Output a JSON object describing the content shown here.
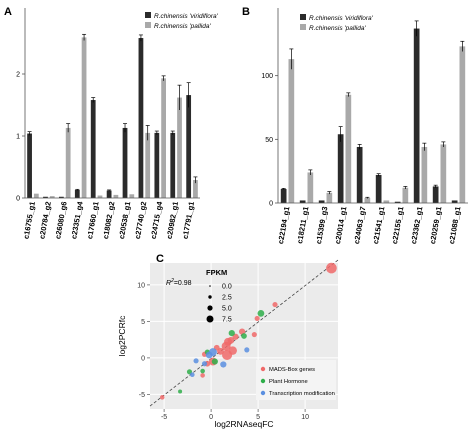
{
  "panels": {
    "a": {
      "letter": "A"
    },
    "b": {
      "letter": "B"
    },
    "c": {
      "letter": "C"
    }
  },
  "legend_ab": {
    "dark": "R.chinensis 'viridiflora'",
    "light": "R.chinensis 'pallida'"
  },
  "colors": {
    "dark_bar": "#2b2b2b",
    "light_bar": "#a9a9a9",
    "mads": "#f06a6a",
    "hormone": "#2fae4a",
    "transcription": "#5a8fe0",
    "scatter_bg": "#ebebeb"
  },
  "chart_data": [
    {
      "type": "bar",
      "panel": "A",
      "categories": [
        "c16755_g1",
        "c20784_g2",
        "c26080_g6",
        "c23351_g4",
        "c17660_g1",
        "c18082_g2",
        "c20538_g1",
        "c27740_g2",
        "c24715_g4",
        "c20982_g1",
        "c17791_g1"
      ],
      "series": [
        {
          "name": "R.chinensis 'viridiflora'",
          "values": [
            1.04,
            0.02,
            0.02,
            0.13,
            1.58,
            0.12,
            1.13,
            2.58,
            1.05,
            1.05,
            1.66
          ]
        },
        {
          "name": "R.chinensis 'pallida'",
          "values": [
            0.07,
            0.03,
            1.13,
            2.59,
            0.04,
            0.05,
            0.06,
            1.05,
            1.93,
            1.62,
            0.29
          ]
        }
      ],
      "errors": [
        [
          0.03,
          0.0,
          0.0,
          0.01,
          0.04,
          0.01,
          0.07,
          0.05,
          0.03,
          0.03,
          0.2
        ],
        [
          0.0,
          0.0,
          0.07,
          0.05,
          0.0,
          0.0,
          0.0,
          0.12,
          0.04,
          0.2,
          0.05
        ]
      ],
      "yticks": [
        0,
        1,
        2
      ],
      "ylim": [
        0,
        3.0
      ],
      "xlabel": "",
      "ylabel": ""
    },
    {
      "type": "bar",
      "panel": "B",
      "categories": [
        "c22194_g1",
        "c18211_g1",
        "c15399_g3",
        "c20014_g1",
        "c24063_g7",
        "c21541_g1",
        "c22155_g1",
        "c23362_g1",
        "c20259_g1",
        "c21088_g1"
      ],
      "series": [
        {
          "name": "R.chinensis 'viridiflora'",
          "values": [
            11,
            2,
            2,
            54,
            44,
            22,
            1,
            137,
            13,
            2
          ]
        },
        {
          "name": "R.chinensis 'pallida'",
          "values": [
            113,
            24,
            8,
            85,
            4,
            2,
            12,
            44,
            46,
            123
          ]
        }
      ],
      "errors": [
        [
          0.5,
          0,
          0,
          6,
          2,
          1,
          0,
          6,
          1,
          0
        ],
        [
          8,
          2,
          1,
          1.5,
          0.5,
          0,
          1,
          3,
          2,
          4
        ]
      ],
      "yticks": [
        0,
        50,
        100
      ],
      "ylim": [
        0,
        150
      ],
      "xlabel": "",
      "ylabel": ""
    },
    {
      "type": "scatter",
      "panel": "C",
      "xlabel": "log2RNAseqFC",
      "ylabel": "log2PCRfc",
      "r2_label": "R",
      "r2_sup": "2",
      "r2_value": "=0.98",
      "size_legend_title": "FPKM",
      "size_levels": [
        "0.0",
        "2.5",
        "5.0",
        "7.5"
      ],
      "xticks": [
        -5,
        0,
        5,
        10
      ],
      "yticks": [
        -5,
        0,
        5,
        10
      ],
      "xlim": [
        -6.5,
        13.5
      ],
      "ylim": [
        -7,
        13
      ],
      "series": [
        {
          "name": "MADS-Box genes",
          "points": [
            [
              12.8,
              12.3,
              7.5
            ],
            [
              6.8,
              7.3,
              2.5
            ],
            [
              4.9,
              5.4,
              2.5
            ],
            [
              3.3,
              3.6,
              3.5
            ],
            [
              2.6,
              2.9,
              3.5
            ],
            [
              2.1,
              2.4,
              4.0
            ],
            [
              1.8,
              2.2,
              5.0
            ],
            [
              1.6,
              1.6,
              6.0
            ],
            [
              1.7,
              0.4,
              7.0
            ],
            [
              1.0,
              0.9,
              4.0
            ],
            [
              0.6,
              1.4,
              3.0
            ],
            [
              2.3,
              1.0,
              5.5
            ],
            [
              -0.7,
              0.5,
              2.5
            ],
            [
              -0.4,
              -0.8,
              3.0
            ],
            [
              -0.9,
              -2.4,
              2.0
            ],
            [
              0.2,
              -0.5,
              5.0
            ],
            [
              -5.2,
              -5.4,
              2.0
            ],
            [
              4.6,
              3.2,
              2.5
            ]
          ]
        },
        {
          "name": "Plant Hormone",
          "points": [
            [
              5.3,
              6.1,
              4.0
            ],
            [
              2.2,
              3.4,
              3.5
            ],
            [
              3.5,
              3.0,
              3.0
            ],
            [
              -0.4,
              0.8,
              2.5
            ],
            [
              0.4,
              -0.5,
              3.5
            ],
            [
              -2.3,
              -1.9,
              2.5
            ],
            [
              -0.9,
              -1.8,
              2.0
            ],
            [
              -3.3,
              -4.6,
              1.5
            ]
          ]
        },
        {
          "name": "Transcription modification",
          "points": [
            [
              0.2,
              0.8,
              5.0
            ],
            [
              -0.2,
              0.4,
              4.0
            ],
            [
              1.3,
              -0.9,
              3.5
            ],
            [
              -0.7,
              -0.8,
              2.5
            ],
            [
              -1.6,
              -0.4,
              2.5
            ],
            [
              3.8,
              1.1,
              2.5
            ],
            [
              -2.0,
              -2.3,
              2.0
            ]
          ]
        }
      ],
      "fit_line": {
        "x": [
          -6.5,
          13.5
        ],
        "y": [
          -6.6,
          13.4
        ]
      }
    }
  ]
}
